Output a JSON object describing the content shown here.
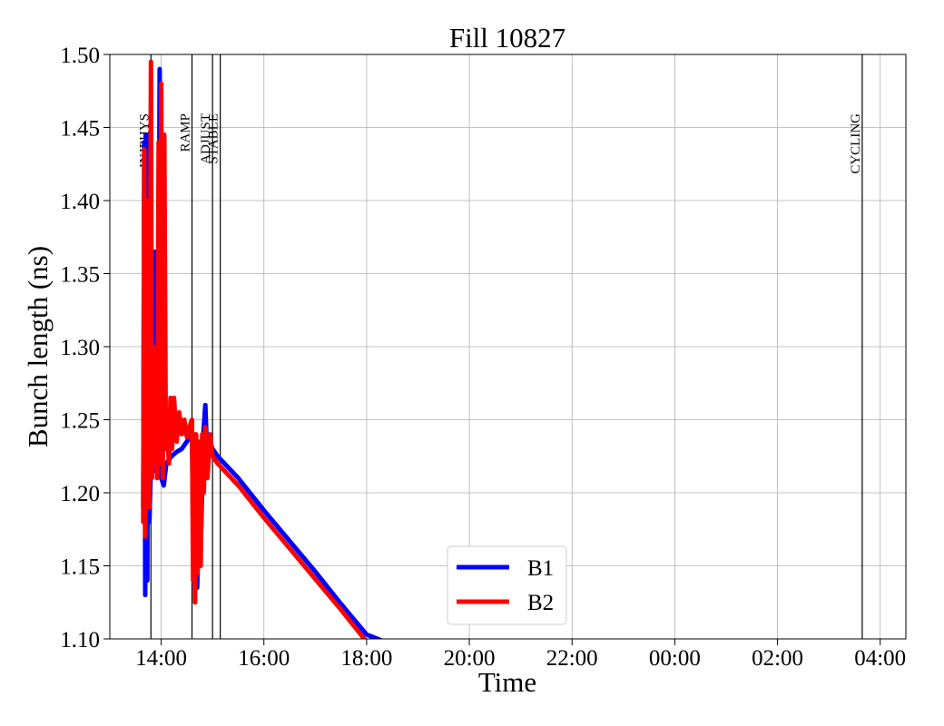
{
  "chart_data": {
    "type": "line",
    "title": "Fill 10827",
    "xlabel": "Time",
    "ylabel": "Bunch length (ns)",
    "x_unit": "hours since 00:00 of fill start day (values beyond 24 are next day)",
    "xlim": [
      13.0,
      28.5
    ],
    "ylim": [
      1.1,
      1.5
    ],
    "x_ticks": [
      {
        "x": 14,
        "label": "14:00"
      },
      {
        "x": 16,
        "label": "16:00"
      },
      {
        "x": 18,
        "label": "18:00"
      },
      {
        "x": 20,
        "label": "20:00"
      },
      {
        "x": 22,
        "label": "22:00"
      },
      {
        "x": 24,
        "label": "00:00"
      },
      {
        "x": 26,
        "label": "02:00"
      },
      {
        "x": 28,
        "label": "04:00"
      }
    ],
    "y_ticks": [
      {
        "y": 1.1,
        "label": "1.10"
      },
      {
        "y": 1.15,
        "label": "1.15"
      },
      {
        "y": 1.2,
        "label": "1.20"
      },
      {
        "y": 1.25,
        "label": "1.25"
      },
      {
        "y": 1.3,
        "label": "1.30"
      },
      {
        "y": 1.35,
        "label": "1.35"
      },
      {
        "y": 1.4,
        "label": "1.40"
      },
      {
        "y": 1.45,
        "label": "1.45"
      },
      {
        "y": 1.5,
        "label": "1.50"
      }
    ],
    "grid": true,
    "legend_position": "bottom-center",
    "phases": [
      {
        "label": "INJPHYS",
        "x": 13.8
      },
      {
        "label": "RAMP",
        "x": 14.6
      },
      {
        "label": "ADJUST",
        "x": 15.0
      },
      {
        "label": "STABLE",
        "x": 15.15
      },
      {
        "label": "CYCLING",
        "x": 27.65
      }
    ],
    "series": [
      {
        "name": "B1",
        "color": "#0000ff",
        "points": [
          [
            13.65,
            1.19
          ],
          [
            13.67,
            1.44
          ],
          [
            13.69,
            1.13
          ],
          [
            13.71,
            1.445
          ],
          [
            13.73,
            1.14
          ],
          [
            13.75,
            1.44
          ],
          [
            13.77,
            1.18
          ],
          [
            13.8,
            1.22
          ],
          [
            13.83,
            1.23
          ],
          [
            13.86,
            1.215
          ],
          [
            13.88,
            1.365
          ],
          [
            13.91,
            1.22
          ],
          [
            13.94,
            1.23
          ],
          [
            13.97,
            1.49
          ],
          [
            14.0,
            1.21
          ],
          [
            14.05,
            1.205
          ],
          [
            14.1,
            1.22
          ],
          [
            14.2,
            1.225
          ],
          [
            14.3,
            1.228
          ],
          [
            14.4,
            1.23
          ],
          [
            14.5,
            1.235
          ],
          [
            14.6,
            1.242
          ],
          [
            14.63,
            1.15
          ],
          [
            14.66,
            1.235
          ],
          [
            14.7,
            1.135
          ],
          [
            14.74,
            1.2
          ],
          [
            14.78,
            1.175
          ],
          [
            14.82,
            1.24
          ],
          [
            14.86,
            1.26
          ],
          [
            14.9,
            1.22
          ],
          [
            14.95,
            1.235
          ],
          [
            15.0,
            1.23
          ],
          [
            15.1,
            1.225
          ],
          [
            15.5,
            1.21
          ],
          [
            16.0,
            1.188
          ],
          [
            16.5,
            1.167
          ],
          [
            17.0,
            1.146
          ],
          [
            17.5,
            1.124
          ],
          [
            18.0,
            1.103
          ],
          [
            18.5,
            1.096
          ]
        ]
      },
      {
        "name": "B2",
        "color": "#ff0000",
        "points": [
          [
            13.65,
            1.18
          ],
          [
            13.67,
            1.435
          ],
          [
            13.69,
            1.17
          ],
          [
            13.71,
            1.4
          ],
          [
            13.73,
            1.2
          ],
          [
            13.75,
            1.23
          ],
          [
            13.77,
            1.19
          ],
          [
            13.8,
            1.495
          ],
          [
            13.82,
            1.21
          ],
          [
            13.85,
            1.3
          ],
          [
            13.87,
            1.22
          ],
          [
            13.9,
            1.235
          ],
          [
            13.92,
            1.21
          ],
          [
            13.95,
            1.44
          ],
          [
            13.98,
            1.22
          ],
          [
            14.0,
            1.48
          ],
          [
            14.03,
            1.21
          ],
          [
            14.06,
            1.445
          ],
          [
            14.09,
            1.23
          ],
          [
            14.12,
            1.24
          ],
          [
            14.15,
            1.22
          ],
          [
            14.18,
            1.265
          ],
          [
            14.21,
            1.23
          ],
          [
            14.25,
            1.265
          ],
          [
            14.3,
            1.235
          ],
          [
            14.35,
            1.255
          ],
          [
            14.4,
            1.24
          ],
          [
            14.45,
            1.25
          ],
          [
            14.5,
            1.238
          ],
          [
            14.55,
            1.245
          ],
          [
            14.6,
            1.25
          ],
          [
            14.62,
            1.14
          ],
          [
            14.64,
            1.24
          ],
          [
            14.66,
            1.125
          ],
          [
            14.68,
            1.24
          ],
          [
            14.71,
            1.145
          ],
          [
            14.74,
            1.235
          ],
          [
            14.77,
            1.15
          ],
          [
            14.8,
            1.24
          ],
          [
            14.83,
            1.2
          ],
          [
            14.86,
            1.245
          ],
          [
            14.9,
            1.21
          ],
          [
            14.95,
            1.24
          ],
          [
            15.0,
            1.225
          ],
          [
            15.1,
            1.22
          ],
          [
            15.5,
            1.205
          ],
          [
            16.0,
            1.183
          ],
          [
            16.5,
            1.162
          ],
          [
            17.0,
            1.141
          ],
          [
            17.5,
            1.12
          ],
          [
            18.0,
            1.098
          ],
          [
            18.3,
            1.086
          ]
        ]
      }
    ]
  }
}
